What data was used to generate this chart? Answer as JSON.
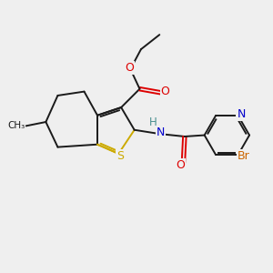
{
  "background_color": "#efefef",
  "bond_color": "#1a1a1a",
  "atom_colors": {
    "O": "#dd0000",
    "S": "#ccaa00",
    "N": "#0000cc",
    "H": "#4a9090",
    "Br": "#cc6600"
  },
  "figsize": [
    3.0,
    3.0
  ],
  "dpi": 100
}
